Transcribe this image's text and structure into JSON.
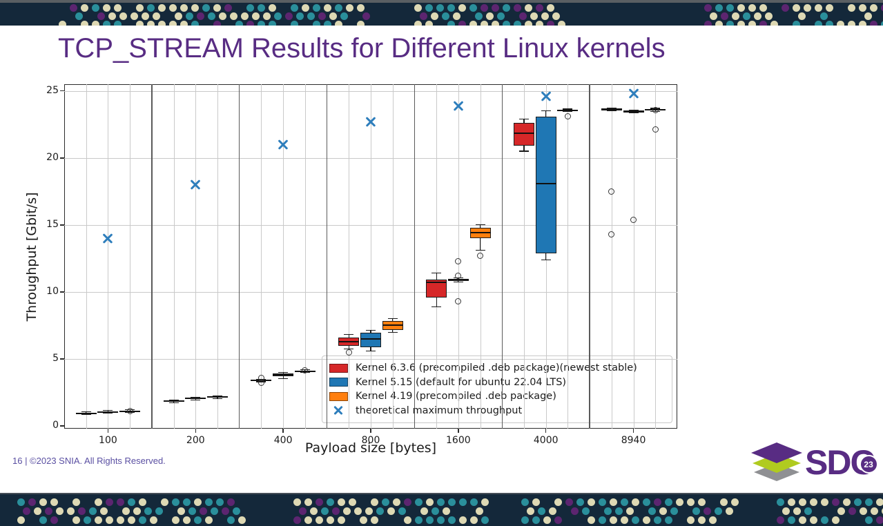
{
  "slide": {
    "title": "TCP_STREAM Results for Different Linux kernels",
    "footer": "16 | ©2023 SNIA. All Rights Reserved."
  },
  "logo": {
    "text_sd": "SD",
    "text_c": "C",
    "badge": "23"
  },
  "theme": {
    "title_color": "#582C83",
    "footer_color": "#5a4fa2",
    "banner_bg": "#14283a",
    "banner_strip": "#5a5f63",
    "dot_colors": [
      "#ded9b4",
      "#2a8f9b",
      "#5c2570"
    ],
    "logo_purple": "#582C83",
    "logo_green": "#b0cb1f",
    "logo_gray": "#8f9093",
    "grid_color": "#c9c9c9",
    "separator_color": "#5a5a5a",
    "box_edge_color": "#1a1a1a"
  },
  "chart_data": {
    "type": "boxplot",
    "title": "",
    "xlabel": "Payload size [bytes]",
    "ylabel": "Throughput [Gbit/s]",
    "categories": [
      "100",
      "200",
      "400",
      "800",
      "1600",
      "4000",
      "8940"
    ],
    "yticks": [
      0,
      5,
      10,
      15,
      20,
      25
    ],
    "ylim": [
      -0.2,
      25.5
    ],
    "grid": true,
    "legend_position": "lower right inside plot",
    "series": [
      {
        "name": "Kernel 6.3.6 (precompiled .deb package)(newest stable)",
        "color": "#d62728",
        "boxes": [
          {
            "q1": 0.9,
            "med": 0.95,
            "q3": 1.0,
            "lo": 0.85,
            "hi": 1.05,
            "outliers": []
          },
          {
            "q1": 1.8,
            "med": 1.85,
            "q3": 1.9,
            "lo": 1.75,
            "hi": 1.95,
            "outliers": []
          },
          {
            "q1": 3.35,
            "med": 3.4,
            "q3": 3.45,
            "lo": 3.3,
            "hi": 3.5,
            "outliers": [
              3.6,
              3.25
            ]
          },
          {
            "q1": 6.0,
            "med": 6.3,
            "q3": 6.6,
            "lo": 5.75,
            "hi": 6.85,
            "outliers": [
              5.5
            ]
          },
          {
            "q1": 9.6,
            "med": 10.7,
            "q3": 10.95,
            "lo": 8.9,
            "hi": 11.4,
            "outliers": []
          },
          {
            "q1": 20.9,
            "med": 21.85,
            "q3": 22.6,
            "lo": 20.5,
            "hi": 22.9,
            "outliers": []
          },
          {
            "q1": 23.55,
            "med": 23.6,
            "q3": 23.68,
            "lo": 23.5,
            "hi": 23.72,
            "outliers": [
              17.5,
              14.3
            ]
          }
        ]
      },
      {
        "name": "Kernel 5.15 (default for ubuntu 22.04 LTS)",
        "color": "#1f77b4",
        "boxes": [
          {
            "q1": 1.0,
            "med": 1.05,
            "q3": 1.1,
            "lo": 0.95,
            "hi": 1.15,
            "outliers": []
          },
          {
            "q1": 2.0,
            "med": 2.05,
            "q3": 2.1,
            "lo": 1.95,
            "hi": 2.15,
            "outliers": []
          },
          {
            "q1": 3.7,
            "med": 3.8,
            "q3": 3.9,
            "lo": 3.55,
            "hi": 4.0,
            "outliers": []
          },
          {
            "q1": 5.9,
            "med": 6.5,
            "q3": 6.95,
            "lo": 5.6,
            "hi": 7.15,
            "outliers": []
          },
          {
            "q1": 10.8,
            "med": 10.9,
            "q3": 10.98,
            "lo": 10.75,
            "hi": 11.05,
            "outliers": [
              12.3,
              11.2,
              9.3
            ]
          },
          {
            "q1": 12.9,
            "med": 18.1,
            "q3": 23.1,
            "lo": 12.4,
            "hi": 23.5,
            "outliers": []
          },
          {
            "q1": 23.4,
            "med": 23.45,
            "q3": 23.52,
            "lo": 23.35,
            "hi": 23.58,
            "outliers": [
              15.4
            ]
          }
        ]
      },
      {
        "name": "Kernel 4.19 (precompiled .deb package)",
        "color": "#ff7f0e",
        "boxes": [
          {
            "q1": 1.05,
            "med": 1.1,
            "q3": 1.15,
            "lo": 1.0,
            "hi": 1.2,
            "outliers": [
              1.1
            ]
          },
          {
            "q1": 2.1,
            "med": 2.15,
            "q3": 2.2,
            "lo": 2.05,
            "hi": 2.25,
            "outliers": []
          },
          {
            "q1": 4.05,
            "med": 4.1,
            "q3": 4.15,
            "lo": 4.0,
            "hi": 4.2,
            "outliers": [
              4.15
            ]
          },
          {
            "q1": 7.15,
            "med": 7.55,
            "q3": 7.85,
            "lo": 7.0,
            "hi": 8.0,
            "outliers": []
          },
          {
            "q1": 14.0,
            "med": 14.45,
            "q3": 14.8,
            "lo": 13.1,
            "hi": 15.0,
            "outliers": [
              12.7
            ]
          },
          {
            "q1": 23.5,
            "med": 23.55,
            "q3": 23.6,
            "lo": 23.45,
            "hi": 23.65,
            "outliers": [
              23.1
            ]
          },
          {
            "q1": 23.52,
            "med": 23.58,
            "q3": 23.64,
            "lo": 23.48,
            "hi": 23.7,
            "outliers": [
              23.55,
              22.15
            ]
          }
        ]
      }
    ],
    "max_marker": {
      "label": "theoretical maximum throughput",
      "color": "#2e7ebc",
      "values": [
        14.0,
        18.0,
        21.0,
        22.7,
        23.9,
        24.6,
        24.8
      ]
    }
  }
}
